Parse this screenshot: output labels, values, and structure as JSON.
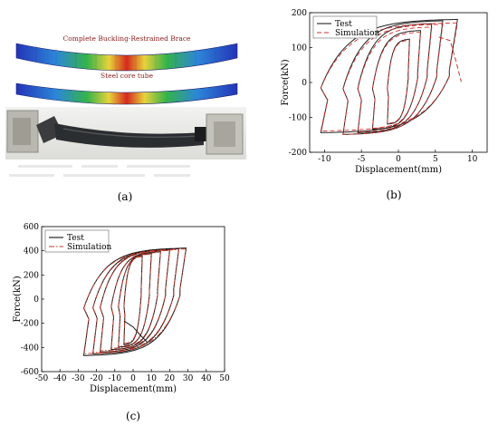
{
  "figure": {
    "captions": {
      "a": "(a)",
      "b": "(b)",
      "c": "(c)"
    },
    "panel_a": {
      "model_label_1": "Complete Buckling-Restrained Brace",
      "model_label_2": "Steel core tube",
      "colors": {
        "blue": "#2434b8",
        "green": "#34b34a",
        "yellow": "#e8d23a",
        "red": "#d42a1c",
        "sleeve": "#2b2e31",
        "bracket": "#b9b8b0",
        "bg": "#ffffff"
      }
    }
  },
  "chart_data": [
    {
      "id": "b",
      "type": "line",
      "xlabel": "Displacement(mm)",
      "ylabel": "Force(kN)",
      "xlim": [
        -12,
        12
      ],
      "ylim": [
        -200,
        200
      ],
      "xticks": [
        -10,
        -5,
        0,
        5,
        10
      ],
      "yticks": [
        -200,
        -100,
        0,
        100,
        200
      ],
      "legend_position": "top-left",
      "series": [
        {
          "name": "Test",
          "style": "solid",
          "color": "#222222",
          "loops": [
            {
              "xmin": -1.5,
              "xmax": 1.5,
              "fmin": -120,
              "fmax": 125
            },
            {
              "xmin": -3.5,
              "xmax": 3.0,
              "fmin": -135,
              "fmax": 150
            },
            {
              "xmin": -5.5,
              "xmax": 4.5,
              "fmin": -145,
              "fmax": 170
            },
            {
              "xmin": -7.5,
              "xmax": 6.0,
              "fmin": -150,
              "fmax": 178
            },
            {
              "xmin": -10.5,
              "xmax": 8.0,
              "fmin": -145,
              "fmax": 182
            }
          ]
        },
        {
          "name": "Simulation",
          "style": "dashed",
          "color": "#d0312d",
          "loops": [
            {
              "xmin": -1.5,
              "xmax": 1.5,
              "fmin": -118,
              "fmax": 122
            },
            {
              "xmin": -3.5,
              "xmax": 3.0,
              "fmin": -132,
              "fmax": 145
            },
            {
              "xmin": -5.5,
              "xmax": 4.5,
              "fmin": -143,
              "fmax": 160
            },
            {
              "xmin": -7.5,
              "xmax": 6.0,
              "fmin": -150,
              "fmax": 168
            },
            {
              "xmin": -10.5,
              "xmax": 8.0,
              "fmin": -140,
              "fmax": 172
            }
          ],
          "tail": {
            "x": [
              5.5,
              7.0,
              7.8,
              8.5
            ],
            "y": [
              130,
              120,
              60,
              2
            ]
          }
        }
      ]
    },
    {
      "id": "c",
      "type": "line",
      "xlabel": "Displacement(mm)",
      "ylabel": "Force(kN)",
      "xlim": [
        -50,
        50
      ],
      "ylim": [
        -600,
        600
      ],
      "xticks": [
        -50,
        -40,
        -30,
        -20,
        -10,
        0,
        10,
        20,
        30,
        40,
        50
      ],
      "yticks": [
        -600,
        -400,
        -200,
        0,
        200,
        400,
        600
      ],
      "legend_position": "top-left",
      "series": [
        {
          "name": "Test",
          "style": "solid",
          "color": "#111111",
          "loops": [
            {
              "xmin": -5,
              "xmax": 5,
              "fmin": -380,
              "fmax": 360
            },
            {
              "xmin": -8,
              "xmax": 10,
              "fmin": -400,
              "fmax": 380
            },
            {
              "xmin": -12,
              "xmax": 15,
              "fmin": -420,
              "fmax": 395
            },
            {
              "xmin": -18,
              "xmax": 20,
              "fmin": -440,
              "fmax": 410
            },
            {
              "xmin": -22,
              "xmax": 25,
              "fmin": -455,
              "fmax": 420
            },
            {
              "xmin": -27,
              "xmax": 29,
              "fmin": -470,
              "fmax": 425
            }
          ],
          "tail": {
            "x": [
              -5,
              0,
              4,
              8
            ],
            "y": [
              -180,
              -230,
              -300,
              -360
            ]
          }
        },
        {
          "name": "Simulation",
          "style": "dashdot",
          "color": "#c0392b",
          "loops": [
            {
              "xmin": -5,
              "xmax": 5,
              "fmin": -370,
              "fmax": 355
            },
            {
              "xmin": -8,
              "xmax": 10,
              "fmin": -395,
              "fmax": 375
            },
            {
              "xmin": -12,
              "xmax": 15,
              "fmin": -410,
              "fmax": 390
            },
            {
              "xmin": -18,
              "xmax": 20,
              "fmin": -430,
              "fmax": 405
            },
            {
              "xmin": -22,
              "xmax": 25,
              "fmin": -445,
              "fmax": 412
            },
            {
              "xmin": -27,
              "xmax": 29,
              "fmin": -455,
              "fmax": 418
            }
          ]
        }
      ]
    }
  ]
}
